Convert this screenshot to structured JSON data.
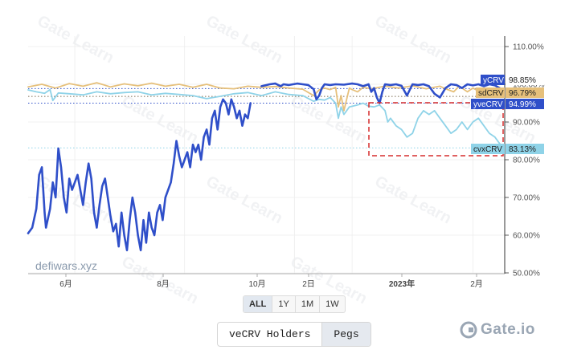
{
  "chart_data": {
    "type": "line",
    "source_label": "defiwars.xyz",
    "x_ticks": [
      "6月",
      "8月",
      "10月",
      "2日",
      "2023年",
      "2月"
    ],
    "y_ticks": [
      "110.00%",
      "100.00%",
      "90.00%",
      "80.00%",
      "70.00%",
      "60.00%",
      "50.00%"
    ],
    "ylim": [
      50,
      110
    ],
    "y_unit": "%",
    "grid": true,
    "highlight_box": "dashed red rectangle around cvxCRV from 2023年 to 2月",
    "series": [
      {
        "name": "yCRV",
        "color": "#2f4fc9",
        "end_label": "yCRV",
        "end_value": "98.85%",
        "segments": [
          [
            [
              0,
              60.5
            ],
            [
              1.5,
              62
            ],
            [
              3,
              67
            ],
            [
              4,
              76
            ],
            [
              5,
              78
            ],
            [
              6,
              66
            ],
            [
              6.5,
              62
            ],
            [
              8,
              67
            ],
            [
              9,
              74
            ],
            [
              10,
              70
            ],
            [
              11,
              83
            ],
            [
              12,
              78
            ],
            [
              13,
              70
            ],
            [
              14,
              66
            ],
            [
              15,
              75
            ],
            [
              16,
              72
            ],
            [
              17,
              74
            ],
            [
              18,
              76
            ],
            [
              19,
              72
            ],
            [
              20,
              68
            ],
            [
              21,
              74
            ],
            [
              22,
              79
            ],
            [
              23,
              75
            ],
            [
              24,
              66
            ],
            [
              25,
              62
            ],
            [
              26,
              68
            ],
            [
              27,
              73
            ],
            [
              28,
              75
            ],
            [
              29,
              70
            ],
            [
              30,
              65
            ],
            [
              31,
              61
            ],
            [
              32,
              63
            ],
            [
              33,
              57
            ],
            [
              34,
              66
            ],
            [
              35,
              60
            ],
            [
              36,
              56
            ],
            [
              37,
              64
            ],
            [
              38,
              70
            ],
            [
              39,
              66
            ],
            [
              40,
              60
            ],
            [
              41,
              56
            ],
            [
              42,
              64
            ],
            [
              43,
              58
            ],
            [
              44,
              66
            ],
            [
              45,
              62
            ],
            [
              46,
              60
            ],
            [
              47,
              66
            ],
            [
              48,
              68
            ],
            [
              49,
              64
            ],
            [
              50,
              70
            ],
            [
              51,
              72
            ],
            [
              52,
              74
            ],
            [
              53,
              79
            ],
            [
              54,
              85
            ],
            [
              55,
              81
            ],
            [
              56,
              78
            ],
            [
              57,
              80
            ],
            [
              58,
              82
            ],
            [
              59,
              78
            ],
            [
              60,
              84
            ],
            [
              61,
              82
            ],
            [
              62,
              84
            ],
            [
              63,
              80
            ],
            [
              64,
              86
            ],
            [
              65,
              88
            ],
            [
              66,
              84
            ],
            [
              67,
              91
            ],
            [
              68,
              93
            ],
            [
              69,
              88
            ],
            [
              70,
              94
            ],
            [
              71,
              96
            ],
            [
              72,
              95
            ],
            [
              73,
              92
            ],
            [
              74,
              96
            ],
            [
              75,
              94
            ],
            [
              76,
              91
            ],
            [
              77,
              93
            ],
            [
              78,
              89
            ],
            [
              79,
              92
            ],
            [
              80,
              91
            ],
            [
              81,
              95
            ]
          ],
          [
            [
              85,
              99.5
            ],
            [
              88,
              100
            ],
            [
              90,
              100.2
            ],
            [
              92,
              99.5
            ],
            [
              93,
              100
            ],
            [
              95,
              99.8
            ],
            [
              98,
              100.2
            ],
            [
              100,
              100
            ],
            [
              102,
              99.8
            ],
            [
              104,
              98.7
            ],
            [
              105,
              96
            ],
            [
              106,
              97
            ],
            [
              107,
              99
            ],
            [
              108,
              100
            ],
            [
              110,
              99.8
            ],
            [
              112,
              100
            ],
            [
              115,
              99.9
            ],
            [
              118,
              100.2
            ],
            [
              120,
              100
            ],
            [
              122,
              99.5
            ],
            [
              124,
              100
            ],
            [
              125,
              98
            ],
            [
              126,
              99
            ],
            [
              127,
              96.5
            ],
            [
              128,
              95
            ],
            [
              129,
              98
            ],
            [
              130,
              100
            ],
            [
              132,
              99.8
            ],
            [
              134,
              100
            ],
            [
              136,
              99.6
            ],
            [
              138,
              97
            ],
            [
              139,
              98.5
            ],
            [
              140,
              100
            ],
            [
              142,
              99.8
            ],
            [
              144,
              100
            ],
            [
              146,
              99.5
            ],
            [
              148,
              97.5
            ],
            [
              150,
              96.5
            ],
            [
              152,
              99
            ],
            [
              154,
              100
            ],
            [
              156,
              99.8
            ],
            [
              158,
              99
            ],
            [
              160,
              100
            ],
            [
              162,
              99.7
            ],
            [
              164,
              100
            ],
            [
              166,
              99.5
            ],
            [
              168,
              100
            ],
            [
              170,
              99.7
            ],
            [
              172,
              98.9
            ],
            [
              173,
              98.85
            ]
          ]
        ]
      },
      {
        "name": "sdCRV",
        "color": "#e6c07b",
        "end_label": "sdCRV",
        "end_value": "96.79%",
        "segments": [
          [
            [
              0,
              99.3
            ],
            [
              5,
              100
            ],
            [
              10,
              99
            ],
            [
              15,
              100.2
            ],
            [
              20,
              99.5
            ],
            [
              25,
              100.4
            ],
            [
              30,
              99.3
            ],
            [
              35,
              100.1
            ],
            [
              40,
              99.6
            ],
            [
              45,
              100.3
            ],
            [
              50,
              99.5
            ],
            [
              55,
              100
            ],
            [
              60,
              99.2
            ],
            [
              65,
              100
            ],
            [
              70,
              99
            ],
            [
              75,
              98.8
            ],
            [
              80,
              99.5
            ],
            [
              85,
              99.2
            ],
            [
              90,
              99.4
            ],
            [
              95,
              99
            ],
            [
              100,
              98.7
            ],
            [
              104,
              97
            ],
            [
              106,
              98.5
            ],
            [
              108,
              99
            ],
            [
              110,
              98.6
            ],
            [
              112,
              99.2
            ],
            [
              113,
              94
            ],
            [
              114,
              97
            ],
            [
              115,
              93
            ],
            [
              116,
              96
            ],
            [
              117,
              99
            ],
            [
              118,
              98.6
            ],
            [
              120,
              98
            ],
            [
              122,
              99.2
            ],
            [
              125,
              98.8
            ],
            [
              130,
              99.5
            ],
            [
              135,
              99
            ],
            [
              140,
              99.6
            ],
            [
              145,
              98.8
            ],
            [
              150,
              99.5
            ],
            [
              152,
              98.8
            ],
            [
              155,
              98
            ],
            [
              157,
              99.5
            ],
            [
              160,
              98
            ],
            [
              162,
              99
            ],
            [
              165,
              97.8
            ],
            [
              167,
              98.5
            ],
            [
              170,
              97.5
            ],
            [
              173,
              96.79
            ]
          ]
        ]
      },
      {
        "name": "yveCRV",
        "color": "#2f4fc9",
        "end_label": "yveCRV",
        "end_value": "94.99%",
        "reference_line": true
      },
      {
        "name": "cvxCRV",
        "color": "#8fd3e8",
        "end_label": "cvxCRV",
        "end_value": "83.13%",
        "segments": [
          [
            [
              0,
              98.5
            ],
            [
              3,
              98
            ],
            [
              6,
              97.6
            ],
            [
              8,
              98.6
            ],
            [
              9,
              95.7
            ],
            [
              11,
              97.7
            ],
            [
              15,
              97.5
            ],
            [
              20,
              97.2
            ],
            [
              25,
              98
            ],
            [
              30,
              97.5
            ],
            [
              35,
              97.8
            ],
            [
              40,
              98
            ],
            [
              45,
              97.2
            ],
            [
              50,
              97.6
            ],
            [
              55,
              97.3
            ],
            [
              60,
              97
            ],
            [
              65,
              96.2
            ],
            [
              70,
              96.8
            ],
            [
              75,
              97.5
            ],
            [
              80,
              97.8
            ],
            [
              85,
              97
            ],
            [
              90,
              98
            ],
            [
              95,
              97.3
            ],
            [
              100,
              97
            ],
            [
              104,
              95.5
            ],
            [
              106,
              96
            ],
            [
              108,
              95.8
            ],
            [
              110,
              96.5
            ],
            [
              112,
              95
            ],
            [
              113,
              91
            ],
            [
              114,
              94
            ],
            [
              115,
              92
            ],
            [
              117,
              94
            ],
            [
              120,
              94.5
            ],
            [
              122,
              95
            ],
            [
              124,
              94.2
            ],
            [
              126,
              94
            ],
            [
              128,
              94.5
            ],
            [
              130,
              93
            ],
            [
              131,
              90
            ],
            [
              132,
              91
            ],
            [
              134,
              89
            ],
            [
              136,
              88
            ],
            [
              138,
              86
            ],
            [
              140,
              87
            ],
            [
              142,
              91
            ],
            [
              144,
              93
            ],
            [
              146,
              92
            ],
            [
              148,
              93
            ],
            [
              150,
              91
            ],
            [
              152,
              89
            ],
            [
              154,
              87
            ],
            [
              156,
              88
            ],
            [
              158,
              90
            ],
            [
              160,
              88
            ],
            [
              162,
              90
            ],
            [
              164,
              91
            ],
            [
              166,
              89
            ],
            [
              168,
              87
            ],
            [
              170,
              86
            ],
            [
              172,
              84
            ],
            [
              173,
              83.13
            ]
          ]
        ]
      }
    ]
  },
  "controls": {
    "range_buttons": [
      "ALL",
      "1Y",
      "1M",
      "1W"
    ],
    "tabs": [
      "veCRV Holders",
      "Pegs"
    ]
  },
  "branding": {
    "logo_text": "Gate.io",
    "watermark": "Gate Learn"
  },
  "colors": {
    "accent": "#2f4fc9",
    "highlight": "#d62d2d",
    "grid": "#ececec"
  }
}
